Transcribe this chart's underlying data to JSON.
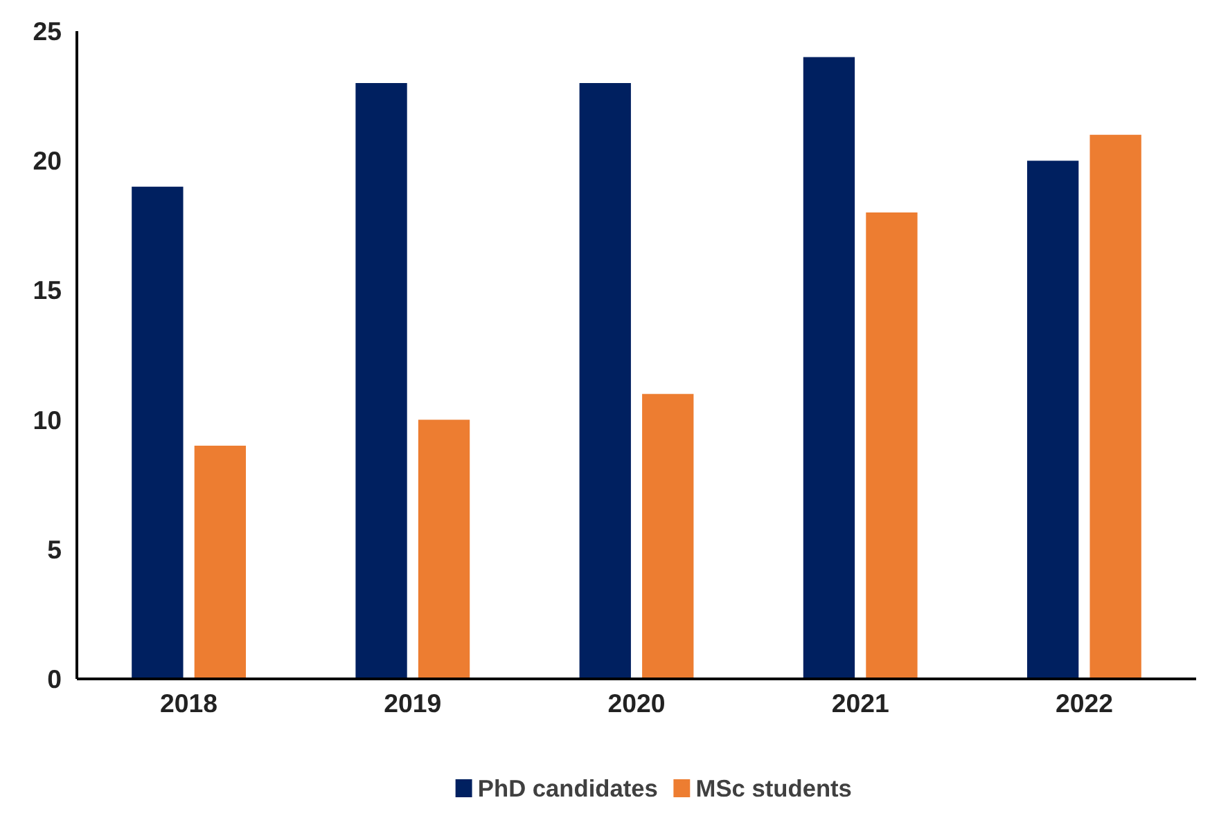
{
  "chart_data": {
    "type": "bar",
    "categories": [
      "2018",
      "2019",
      "2020",
      "2021",
      "2022"
    ],
    "series": [
      {
        "name": "PhD candidates",
        "color": "#002060",
        "values": [
          19,
          23,
          23,
          24,
          20
        ]
      },
      {
        "name": "MSc students",
        "color": "#ed7d31",
        "values": [
          9,
          10,
          11,
          18,
          21
        ]
      }
    ],
    "ylim": [
      0,
      25
    ],
    "yticks": [
      0,
      5,
      10,
      15,
      20,
      25
    ],
    "grid": false,
    "legend": "bottom"
  }
}
